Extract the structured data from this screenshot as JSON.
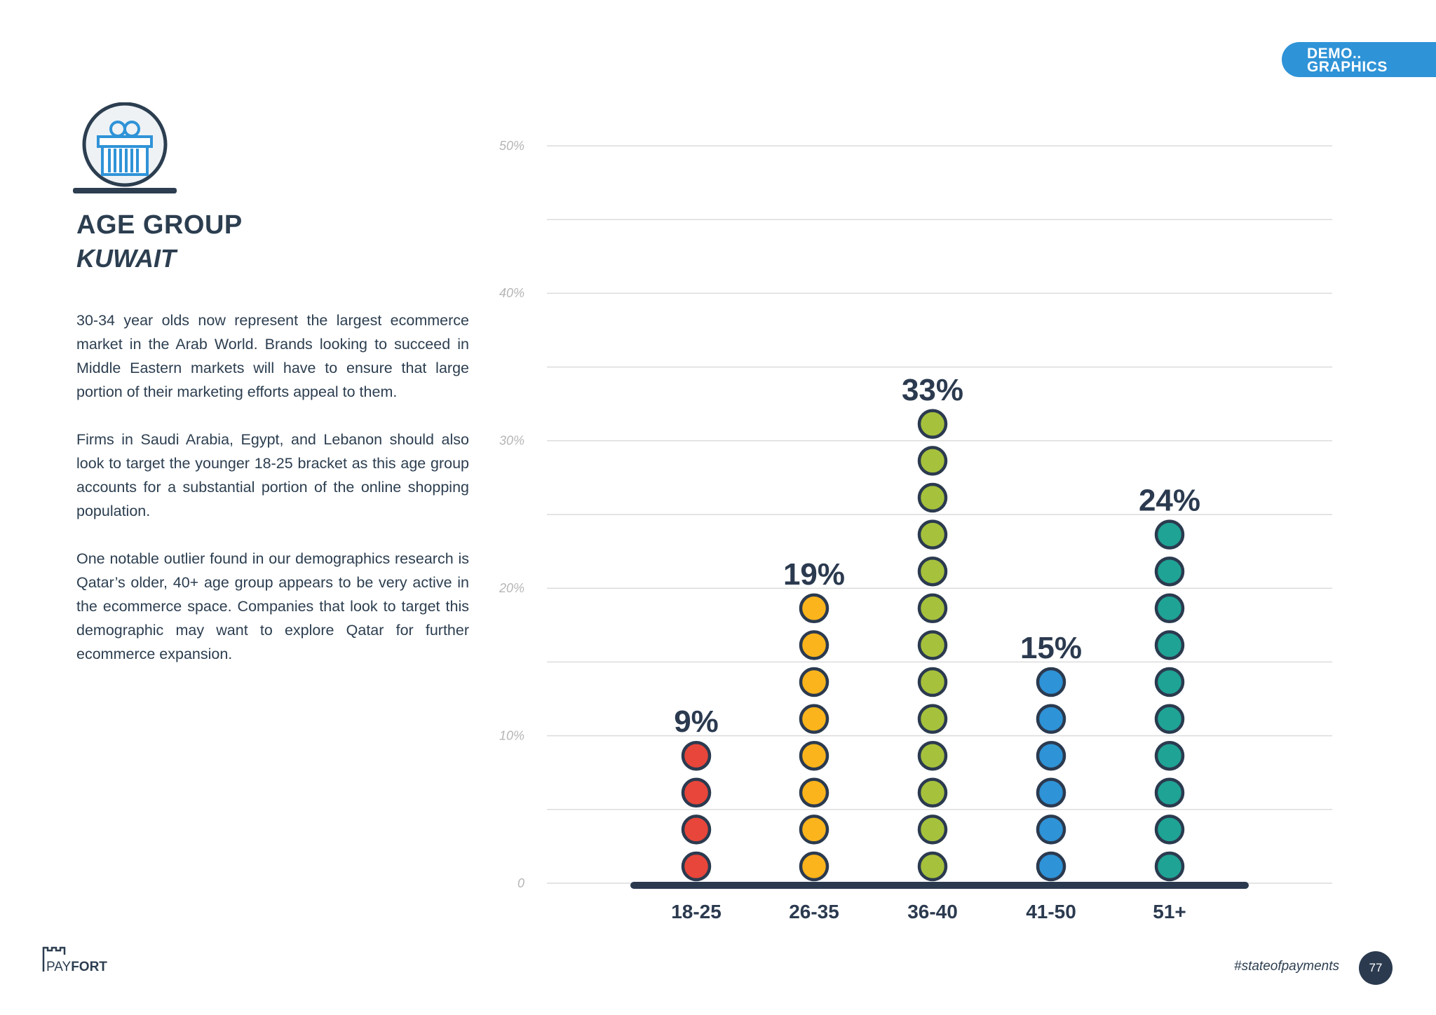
{
  "section_tag": {
    "line1": "DEMO..",
    "line2": "GRAPHICS",
    "color": "#2f93d7"
  },
  "header": {
    "title": "AGE GROUP",
    "subtitle": "KUWAIT",
    "icon": "gift-icon"
  },
  "paragraphs": [
    "30-34 year olds now represent the largest ecommerce market in the Arab World. Brands looking to succeed in Middle Eastern markets will have to ensure that large portion of their marketing efforts appeal to them.",
    "Firms in Saudi Arabia, Egypt, and Lebanon should also look to target the younger 18-25 bracket as this age group accounts for a substantial portion of the online shopping population.",
    "One notable outlier found in our demographics research is Qatar’s older, 40+ age group appears to be very active in the ecommerce space. Companies that look to target this demographic may want to explore Qatar for further ecommerce expansion."
  ],
  "chart_data": {
    "type": "bar",
    "title": "",
    "xlabel": "",
    "ylabel": "",
    "categories": [
      "18-25",
      "26-35",
      "36-40",
      "41-50",
      "51+"
    ],
    "values": [
      9,
      19,
      33,
      15,
      24
    ],
    "value_labels": [
      "9%",
      "19%",
      "33%",
      "15%",
      "24%"
    ],
    "dot_counts": [
      4,
      8,
      13,
      6,
      10
    ],
    "colors": [
      "#e8463a",
      "#fbb41c",
      "#a6c13c",
      "#2f93d7",
      "#1fa394"
    ],
    "ylim": [
      0,
      50
    ],
    "yticks": [
      0,
      10,
      20,
      30,
      40,
      50
    ],
    "ytick_labels": [
      "0",
      "10%",
      "20%",
      "30%",
      "40%",
      "50%"
    ],
    "grid": true
  },
  "footer": {
    "brand": "PAYFORT",
    "hashtag": "#stateofpayments",
    "page": "77"
  }
}
